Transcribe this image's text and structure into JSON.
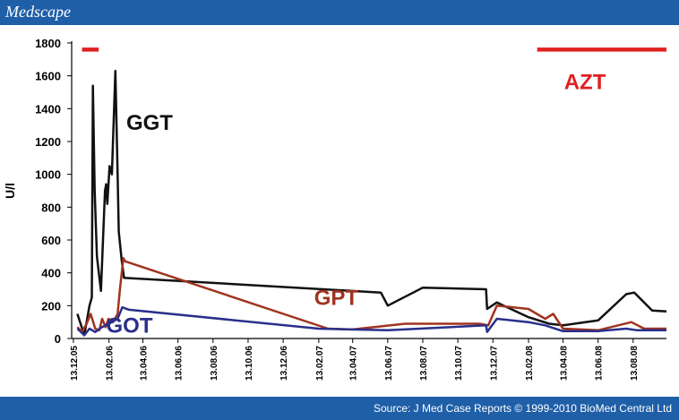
{
  "header": {
    "brand": "Medscape"
  },
  "footer": {
    "source": "Source: J Med Case Reports © 1999-2010 BioMed Central Ltd"
  },
  "colors": {
    "bar": "#1f5fa8",
    "GGT": "#111111",
    "GPT": "#a0341f",
    "GOT": "#2a2f8a",
    "AZT": "#e02020"
  },
  "chart_data": {
    "type": "line",
    "ylabel": "U/l",
    "ylim": [
      0,
      1800
    ],
    "yticks": [
      0,
      200,
      400,
      600,
      800,
      1000,
      1200,
      1400,
      1600,
      1800
    ],
    "xlim": [
      "2005-12-10",
      "2008-10-10"
    ],
    "xticks": [
      {
        "date": "2005-12-13",
        "label": "13.12.05"
      },
      {
        "date": "2006-02-13",
        "label": "13.02.06"
      },
      {
        "date": "2006-04-13",
        "label": "13.04.06"
      },
      {
        "date": "2006-06-13",
        "label": "13.06.06"
      },
      {
        "date": "2006-08-13",
        "label": "13.08.06"
      },
      {
        "date": "2006-10-13",
        "label": "13.10.06"
      },
      {
        "date": "2006-12-13",
        "label": "13.12.06"
      },
      {
        "date": "2007-02-13",
        "label": "13.02.07"
      },
      {
        "date": "2007-04-13",
        "label": "13.04.07"
      },
      {
        "date": "2007-06-13",
        "label": "13.06.07"
      },
      {
        "date": "2007-08-13",
        "label": "13.08.07"
      },
      {
        "date": "2007-10-13",
        "label": "13.10.07"
      },
      {
        "date": "2007-12-13",
        "label": "13.12.07"
      },
      {
        "date": "2008-02-13",
        "label": "13.02.08"
      },
      {
        "date": "2008-04-13",
        "label": "13.04.08"
      },
      {
        "date": "2008-06-13",
        "label": "13.06.08"
      },
      {
        "date": "2008-08-13",
        "label": "13.08.08"
      }
    ],
    "series": [
      {
        "name": "GGT",
        "points": [
          [
            "2005-12-20",
            150
          ],
          [
            "2006-01-01",
            20
          ],
          [
            "2006-01-10",
            200
          ],
          [
            "2006-01-14",
            250
          ],
          [
            "2006-01-16",
            1540
          ],
          [
            "2006-01-19",
            900
          ],
          [
            "2006-01-23",
            500
          ],
          [
            "2006-01-30",
            290
          ],
          [
            "2006-02-06",
            900
          ],
          [
            "2006-02-08",
            940
          ],
          [
            "2006-02-10",
            820
          ],
          [
            "2006-02-14",
            1050
          ],
          [
            "2006-02-18",
            1000
          ],
          [
            "2006-02-24",
            1630
          ],
          [
            "2006-02-28",
            1000
          ],
          [
            "2006-03-02",
            650
          ],
          [
            "2006-03-07",
            480
          ],
          [
            "2006-03-11",
            370
          ],
          [
            "2007-06-01",
            280
          ],
          [
            "2007-06-13",
            200
          ],
          [
            "2007-08-13",
            310
          ],
          [
            "2007-12-01",
            300
          ],
          [
            "2007-12-03",
            180
          ],
          [
            "2007-12-20",
            220
          ],
          [
            "2008-02-13",
            130
          ],
          [
            "2008-03-20",
            90
          ],
          [
            "2008-04-13",
            80
          ],
          [
            "2008-06-13",
            110
          ],
          [
            "2008-08-01",
            270
          ],
          [
            "2008-08-15",
            280
          ],
          [
            "2008-09-15",
            170
          ],
          [
            "2008-10-10",
            165
          ]
        ]
      },
      {
        "name": "GPT",
        "points": [
          [
            "2005-12-20",
            70
          ],
          [
            "2005-12-28",
            40
          ],
          [
            "2006-01-05",
            90
          ],
          [
            "2006-01-12",
            150
          ],
          [
            "2006-01-20",
            60
          ],
          [
            "2006-01-27",
            50
          ],
          [
            "2006-02-01",
            120
          ],
          [
            "2006-02-07",
            70
          ],
          [
            "2006-02-12",
            120
          ],
          [
            "2006-02-20",
            100
          ],
          [
            "2006-02-28",
            150
          ],
          [
            "2006-03-04",
            300
          ],
          [
            "2006-03-10",
            490
          ],
          [
            "2006-03-13",
            470
          ],
          [
            "2007-03-01",
            60
          ],
          [
            "2007-04-13",
            55
          ],
          [
            "2007-07-13",
            90
          ],
          [
            "2007-11-20",
            90
          ],
          [
            "2007-12-05",
            80
          ],
          [
            "2007-12-20",
            200
          ],
          [
            "2008-02-13",
            180
          ],
          [
            "2008-03-13",
            120
          ],
          [
            "2008-03-27",
            150
          ],
          [
            "2008-04-13",
            60
          ],
          [
            "2008-06-13",
            50
          ],
          [
            "2008-08-10",
            100
          ],
          [
            "2008-09-01",
            60
          ],
          [
            "2008-10-10",
            60
          ]
        ]
      },
      {
        "name": "GOT",
        "points": [
          [
            "2005-12-20",
            60
          ],
          [
            "2006-01-01",
            20
          ],
          [
            "2006-01-10",
            60
          ],
          [
            "2006-01-20",
            40
          ],
          [
            "2006-02-01",
            70
          ],
          [
            "2006-02-13",
            90
          ],
          [
            "2006-02-28",
            120
          ],
          [
            "2006-03-08",
            190
          ],
          [
            "2006-03-20",
            175
          ],
          [
            "2007-02-13",
            60
          ],
          [
            "2007-06-13",
            50
          ],
          [
            "2007-12-01",
            80
          ],
          [
            "2007-12-03",
            40
          ],
          [
            "2007-12-20",
            120
          ],
          [
            "2008-02-13",
            100
          ],
          [
            "2008-03-13",
            80
          ],
          [
            "2008-04-13",
            45
          ],
          [
            "2008-06-13",
            45
          ],
          [
            "2008-08-01",
            60
          ],
          [
            "2008-08-20",
            50
          ],
          [
            "2008-10-10",
            50
          ]
        ]
      }
    ],
    "annotations": [
      {
        "text": "GGT",
        "date": "2006-03-15",
        "y": 1270,
        "color": "#111111",
        "size": 24
      },
      {
        "text": "GPT",
        "date": "2007-02-05",
        "y": 205,
        "color": "#a0341f",
        "size": 24
      },
      {
        "text": "GOT",
        "date": "2006-02-08",
        "y": 35,
        "color": "#2a2f8a",
        "size": 24
      },
      {
        "text": "AZT",
        "date": "2008-04-15",
        "y": 1520,
        "color": "#e02020",
        "size": 24
      }
    ],
    "treatment_bars": [
      {
        "label": "",
        "start": "2005-12-28",
        "end": "2006-01-26",
        "y": 1760
      },
      {
        "label": "AZT",
        "start": "2008-02-28",
        "end": "2008-10-10",
        "y": 1760
      }
    ]
  }
}
